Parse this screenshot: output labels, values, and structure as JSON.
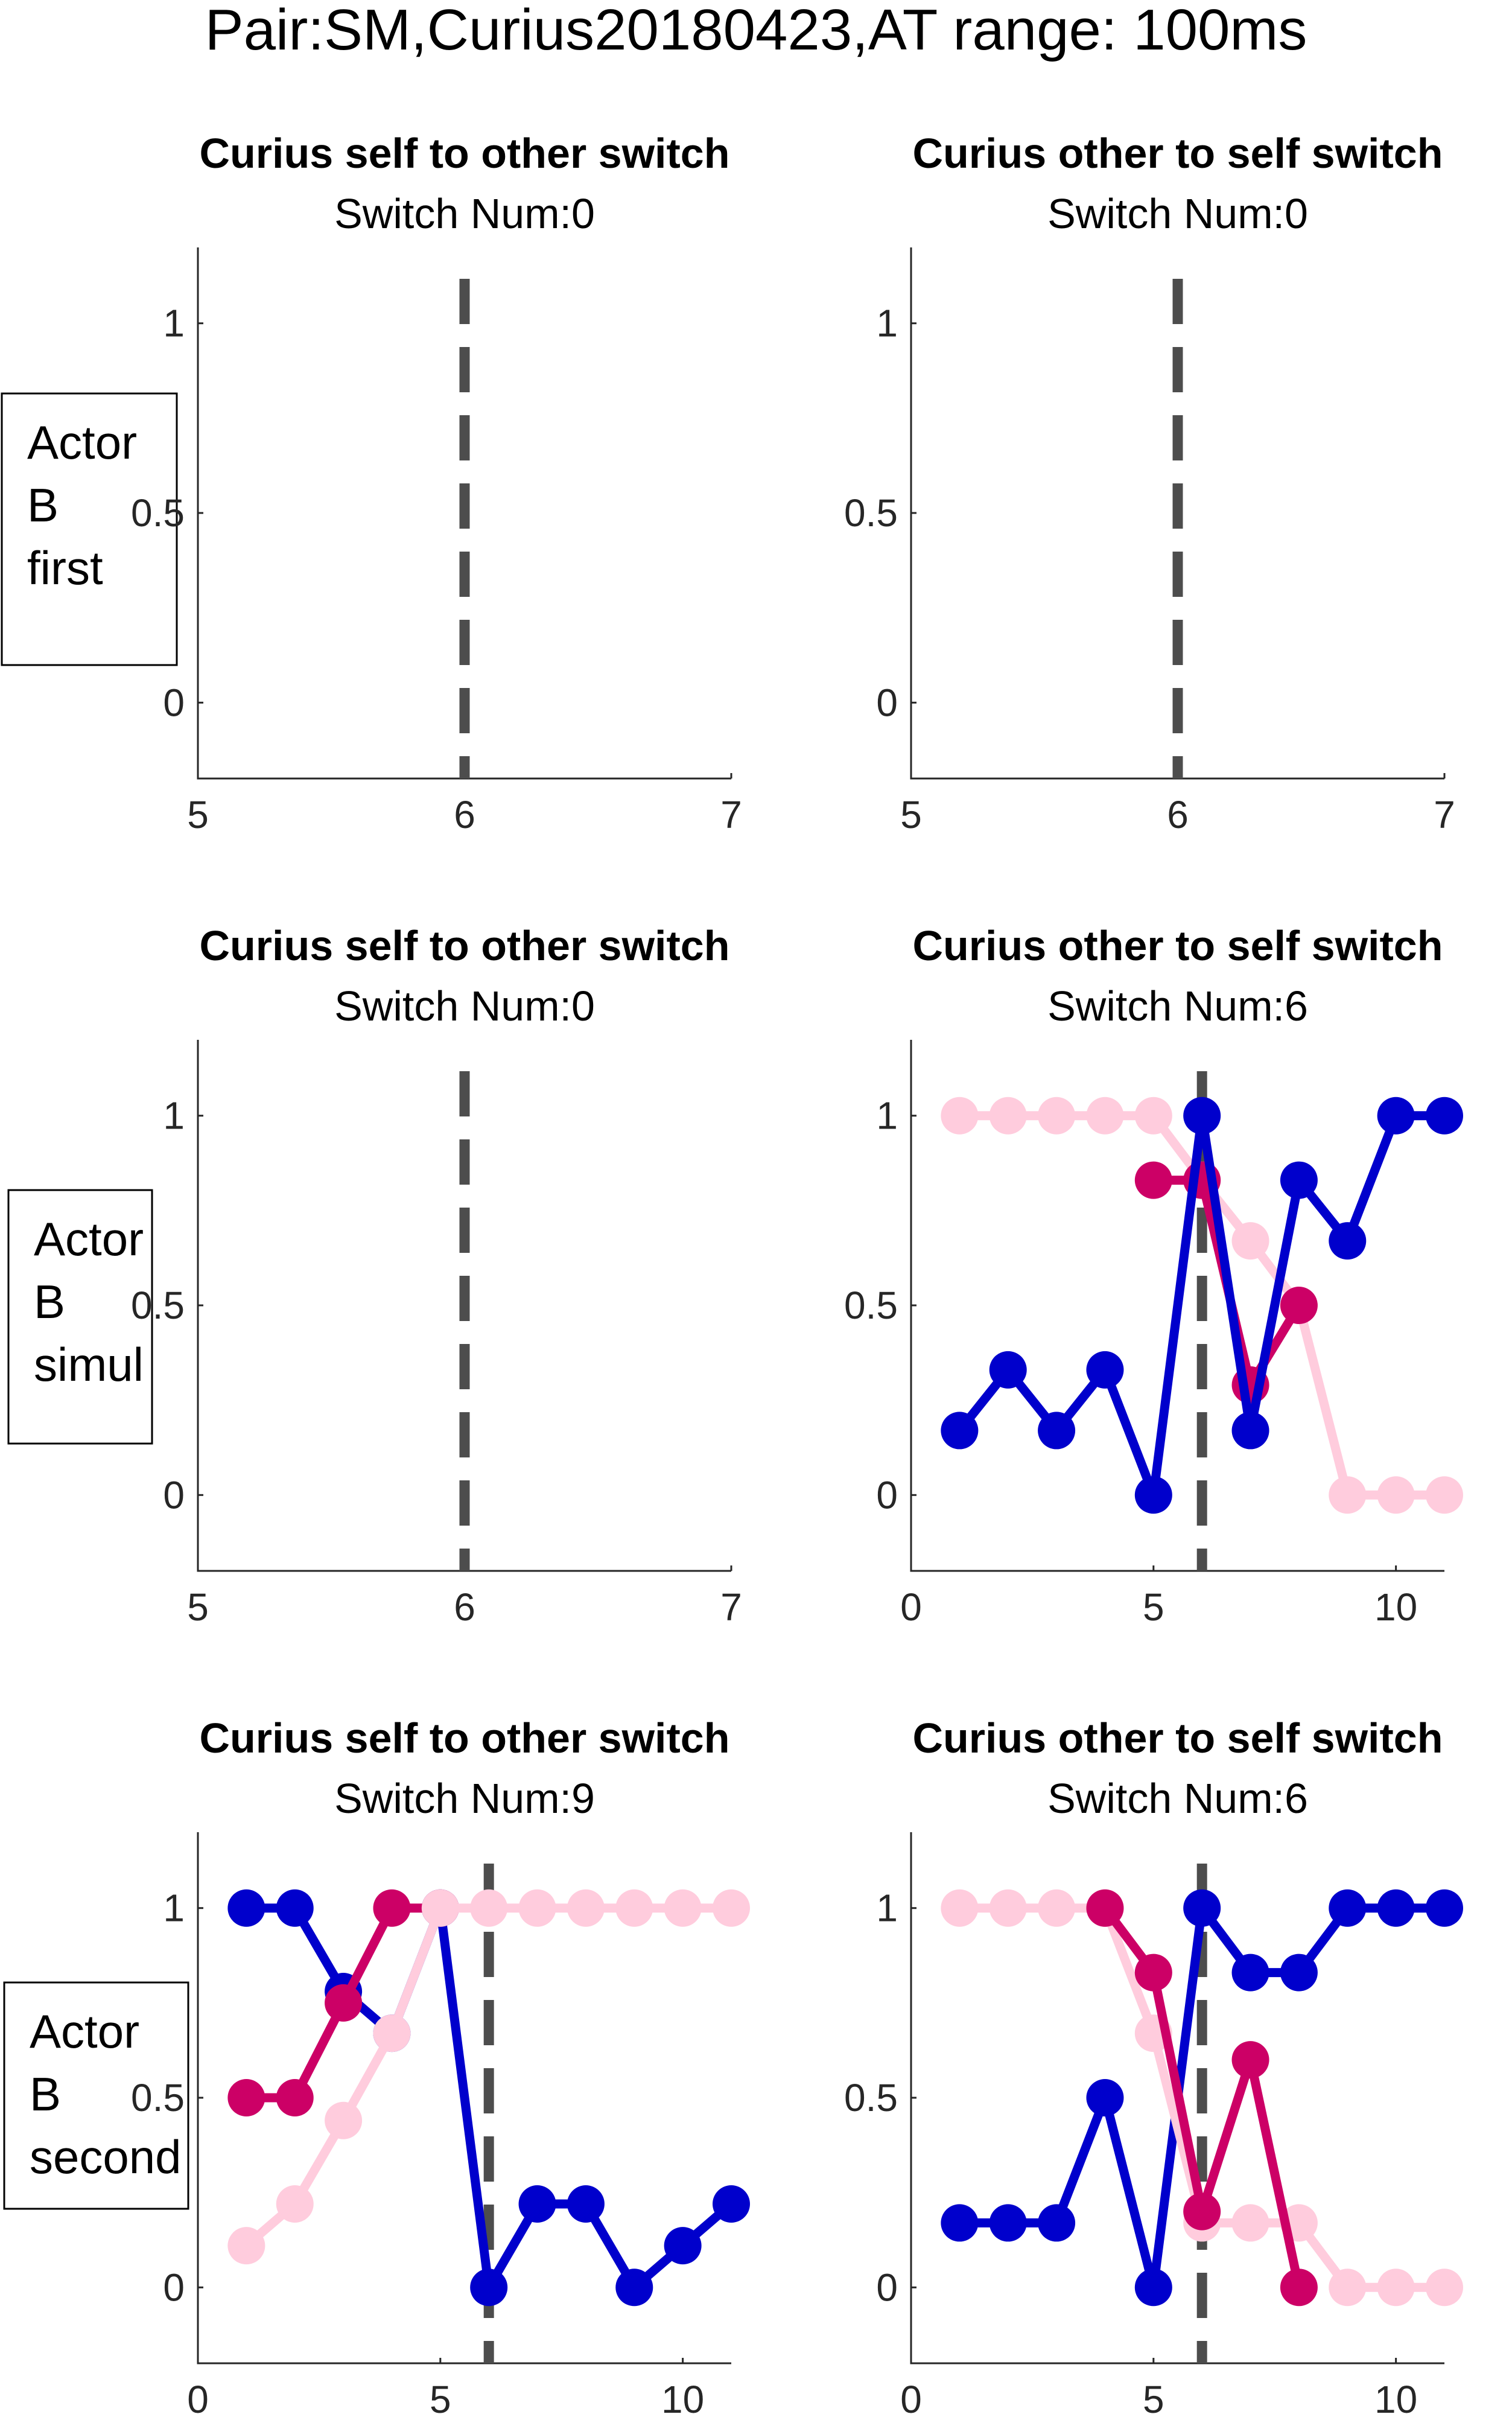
{
  "figure": {
    "title": "Pair:SM,Curius20180423,AT range: 100ms",
    "colors": {
      "blue": "#0000cc",
      "magenta": "#cc0066",
      "pink": "#ffccdd",
      "boundary": "#4d4d4d"
    }
  },
  "row_labels": [
    [
      "Actor",
      "B",
      "first"
    ],
    [
      "Actor",
      "B",
      "simul"
    ],
    [
      "Actor",
      "B",
      "second"
    ]
  ],
  "chart_data": [
    {
      "type": "line",
      "title": "Curius self to other switch",
      "subtitle": "Switch Num:0",
      "xlim": [
        5,
        7
      ],
      "ylim": [
        -0.2,
        1.2
      ],
      "xticks": [
        "5",
        "6",
        "7"
      ],
      "yticks": [
        "0",
        "0.5",
        "1"
      ],
      "xtick_values": [
        5,
        6,
        7
      ],
      "ytick_values": [
        0,
        0.5,
        1
      ],
      "switch_line_x": 6,
      "series": []
    },
    {
      "type": "line",
      "title": "Curius other to self switch",
      "subtitle": "Switch Num:0",
      "xlim": [
        5,
        7
      ],
      "ylim": [
        -0.2,
        1.2
      ],
      "xticks": [
        "5",
        "6",
        "7"
      ],
      "yticks": [
        "0",
        "0.5",
        "1"
      ],
      "xtick_values": [
        5,
        6,
        7
      ],
      "ytick_values": [
        0,
        0.5,
        1
      ],
      "switch_line_x": 6,
      "series": []
    },
    {
      "type": "line",
      "title": "Curius self to other switch",
      "subtitle": "Switch Num:0",
      "xlim": [
        5,
        7
      ],
      "ylim": [
        -0.2,
        1.2
      ],
      "xticks": [
        "5",
        "6",
        "7"
      ],
      "yticks": [
        "0",
        "0.5",
        "1"
      ],
      "xtick_values": [
        5,
        6,
        7
      ],
      "ytick_values": [
        0,
        0.5,
        1
      ],
      "switch_line_x": 6,
      "series": []
    },
    {
      "type": "line",
      "title": "Curius other to self switch",
      "subtitle": "Switch Num:6",
      "xlim": [
        0,
        11
      ],
      "ylim": [
        -0.2,
        1.2
      ],
      "xticks": [
        "0",
        "5",
        "10"
      ],
      "yticks": [
        "0",
        "0.5",
        "1"
      ],
      "xtick_values": [
        0,
        5,
        10
      ],
      "ytick_values": [
        0,
        0.5,
        1
      ],
      "switch_line_x": 6,
      "series": [
        {
          "color": "#ffccdd",
          "x": [
            1,
            2,
            3,
            4,
            5,
            6,
            7,
            8,
            9,
            10,
            11
          ],
          "y": [
            1,
            1,
            1,
            1,
            1,
            0.83,
            0.67,
            0.5,
            0,
            0,
            0
          ]
        },
        {
          "color": "#cc0066",
          "x": [
            5,
            6,
            7,
            8
          ],
          "y": [
            0.83,
            0.83,
            0.29,
            0.5
          ]
        },
        {
          "color": "#0000cc",
          "x": [
            1,
            2,
            3,
            4,
            5,
            6,
            7,
            8,
            9,
            10,
            11
          ],
          "y": [
            0.17,
            0.33,
            0.17,
            0.33,
            0,
            1,
            0.17,
            0.83,
            0.67,
            1,
            1
          ]
        }
      ]
    },
    {
      "type": "line",
      "title": "Curius self to other switch",
      "subtitle": "Switch Num:9",
      "xlim": [
        0,
        11
      ],
      "ylim": [
        -0.2,
        1.2
      ],
      "xticks": [
        "0",
        "5",
        "10"
      ],
      "yticks": [
        "0",
        "0.5",
        "1"
      ],
      "xtick_values": [
        0,
        5,
        10
      ],
      "ytick_values": [
        0,
        0.5,
        1
      ],
      "switch_line_x": 6,
      "series": [
        {
          "color": "#0000cc",
          "x": [
            1,
            2,
            3,
            4,
            5,
            6,
            7,
            8,
            9,
            10,
            11
          ],
          "y": [
            1,
            1,
            0.78,
            0.67,
            1,
            0,
            0.22,
            0.22,
            0,
            0.11,
            0.22
          ]
        },
        {
          "color": "#cc0066",
          "x": [
            1,
            2,
            3,
            4,
            5
          ],
          "y": [
            0.5,
            0.5,
            0.75,
            1,
            1
          ]
        },
        {
          "color": "#ffccdd",
          "x": [
            1,
            2,
            3,
            4,
            5,
            6,
            7,
            8,
            9,
            10,
            11
          ],
          "y": [
            0.11,
            0.22,
            0.44,
            0.67,
            1,
            1,
            1,
            1,
            1,
            1,
            1
          ]
        }
      ]
    },
    {
      "type": "line",
      "title": "Curius other to self switch",
      "subtitle": "Switch Num:6",
      "xlim": [
        0,
        11
      ],
      "ylim": [
        -0.2,
        1.2
      ],
      "xticks": [
        "0",
        "5",
        "10"
      ],
      "yticks": [
        "0",
        "0.5",
        "1"
      ],
      "xtick_values": [
        0,
        5,
        10
      ],
      "ytick_values": [
        0,
        0.5,
        1
      ],
      "switch_line_x": 6,
      "series": [
        {
          "color": "#0000cc",
          "x": [
            1,
            2,
            3,
            4,
            5,
            6,
            7,
            8,
            9,
            10,
            11
          ],
          "y": [
            0.17,
            0.17,
            0.17,
            0.5,
            0,
            1,
            0.83,
            0.83,
            1,
            1,
            1
          ]
        },
        {
          "color": "#ffccdd",
          "x": [
            1,
            2,
            3,
            4,
            5,
            6,
            7,
            8,
            9,
            10,
            11
          ],
          "y": [
            1,
            1,
            1,
            1,
            0.67,
            0.17,
            0.17,
            0.17,
            0,
            0,
            0
          ]
        },
        {
          "color": "#cc0066",
          "x": [
            4,
            5,
            6,
            7,
            8
          ],
          "y": [
            1,
            0.83,
            0.2,
            0.6,
            0
          ]
        }
      ]
    }
  ]
}
